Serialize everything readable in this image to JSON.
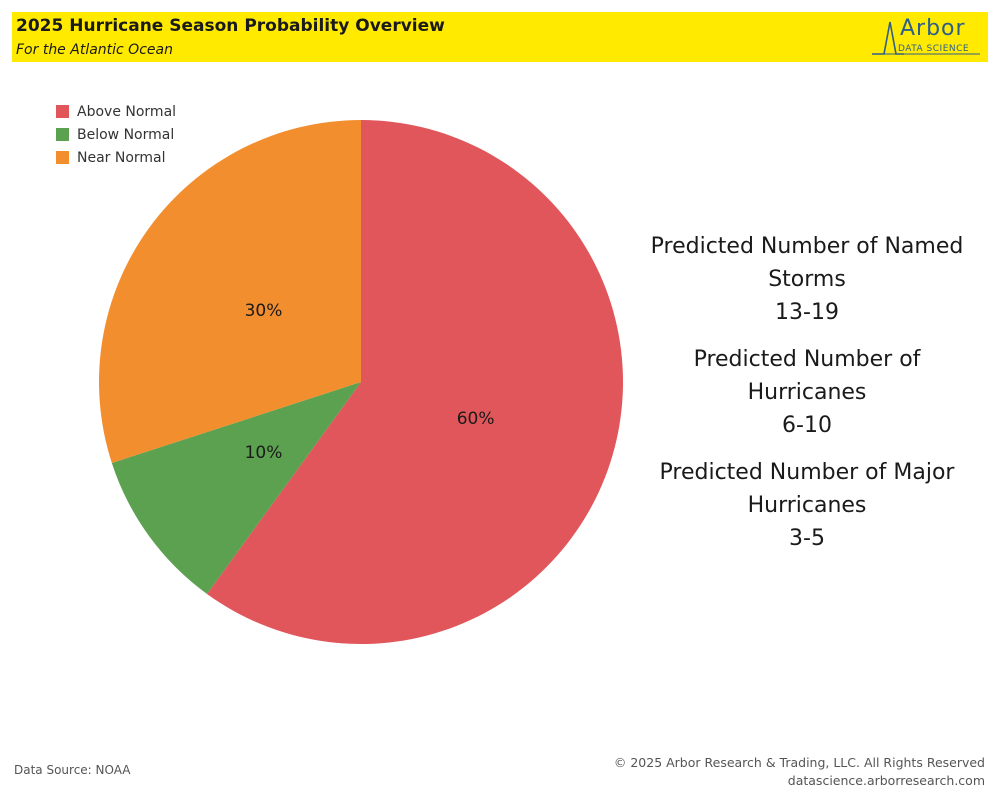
{
  "header": {
    "title": "2025 Hurricane Season Probability Overview",
    "subtitle": "For the Atlantic Ocean",
    "logo_word": "Arbor",
    "logo_sub": "DATA SCIENCE"
  },
  "chart_data": {
    "type": "pie",
    "title": "2025 Hurricane Season Probability Overview",
    "subtitle": "For the Atlantic Ocean",
    "legend_position": "top-left",
    "slices": [
      {
        "label": "Above Normal",
        "value": 60,
        "display": "60%",
        "color": "#e0565b"
      },
      {
        "label": "Below Normal",
        "value": 10,
        "display": "10%",
        "color": "#5ba150"
      },
      {
        "label": "Near Normal",
        "value": 30,
        "display": "30%",
        "color": "#f28e2e"
      }
    ],
    "legend": [
      "Above Normal",
      "Below Normal",
      "Near Normal"
    ]
  },
  "stats": [
    {
      "label": "Predicted Number of Named Storms",
      "value": "13-19"
    },
    {
      "label": "Predicted Number of Hurricanes",
      "value": "6-10"
    },
    {
      "label": "Predicted Number of Major Hurricanes",
      "value": "3-5"
    }
  ],
  "footer": {
    "source": "Data Source: NOAA",
    "copyright": "© 2025 Arbor Research & Trading, LLC. All Rights Reserved",
    "url": "datascience.arborresearch.com"
  }
}
